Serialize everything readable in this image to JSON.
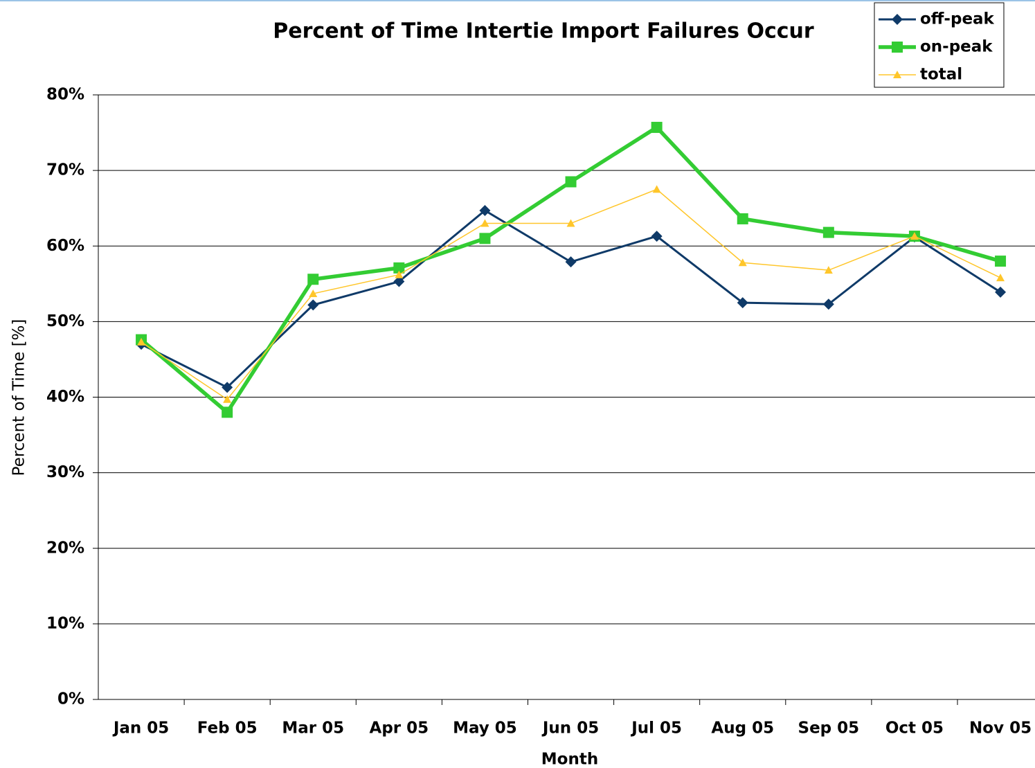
{
  "chart_data": {
    "type": "line",
    "title": "Percent of Time Intertie Import Failures Occur",
    "x_label": "Month",
    "y_label": "Percent of Time [%]",
    "categories": [
      "Jan 05",
      "Feb 05",
      "Mar 05",
      "Apr 05",
      "May 05",
      "Jun 05",
      "Jul 05",
      "Aug 05",
      "Sep 05",
      "Oct 05",
      "Nov 05"
    ],
    "series": [
      {
        "name": "off-peak",
        "color": "#0f3a68",
        "marker": "diamond",
        "values": [
          47.0,
          41.3,
          52.2,
          55.3,
          64.7,
          57.9,
          61.3,
          52.5,
          52.3,
          61.2,
          53.9
        ]
      },
      {
        "name": "on-peak",
        "color": "#33cc33",
        "marker": "square",
        "values": [
          47.6,
          38.0,
          55.6,
          57.1,
          61.0,
          68.5,
          75.7,
          63.6,
          61.8,
          61.3,
          58.0
        ]
      },
      {
        "name": "total",
        "color": "#ffc62a",
        "marker": "triangle",
        "values": [
          47.3,
          39.7,
          53.7,
          56.2,
          63.0,
          63.0,
          67.5,
          57.8,
          56.8,
          61.3,
          55.8
        ]
      }
    ],
    "ylim": [
      0,
      80
    ],
    "yticks": [
      {
        "value": 0,
        "label": "0%"
      },
      {
        "value": 10,
        "label": "10%"
      },
      {
        "value": 20,
        "label": "20%"
      },
      {
        "value": 30,
        "label": "30%"
      },
      {
        "value": 40,
        "label": "40%"
      },
      {
        "value": 50,
        "label": "50%"
      },
      {
        "value": 60,
        "label": "60%"
      },
      {
        "value": 70,
        "label": "70%"
      },
      {
        "value": 80,
        "label": "80%"
      }
    ],
    "grid": true,
    "legend": "top-right"
  }
}
